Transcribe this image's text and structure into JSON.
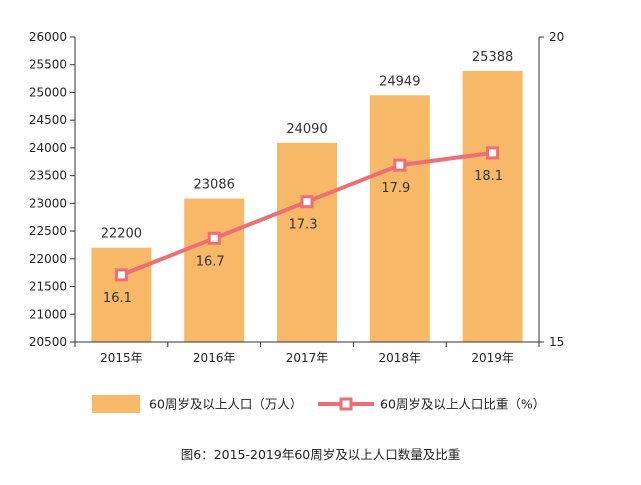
{
  "chart_data": {
    "type": "bar",
    "categories": [
      "2015年",
      "2016年",
      "2017年",
      "2018年",
      "2019年"
    ],
    "series": [
      {
        "name": "60周岁及以上人口（万人）",
        "type": "bar",
        "axis": "left",
        "values": [
          22200,
          23086,
          24090,
          24949,
          25388
        ],
        "labels": [
          "22200",
          "23086",
          "24090",
          "24949",
          "25388"
        ],
        "color": "#F7B868"
      },
      {
        "name": "60周岁及以上人口比重（%）",
        "type": "line",
        "axis": "right",
        "values": [
          16.1,
          16.7,
          17.3,
          17.9,
          18.1
        ],
        "labels": [
          "16.1",
          "16.7",
          "17.3",
          "17.9",
          "18.1"
        ],
        "color": "#EE6E73"
      }
    ],
    "y_left": {
      "range": [
        20500,
        26000
      ],
      "ticks": [
        "20500",
        "21000",
        "21500",
        "22000",
        "22500",
        "23000",
        "23500",
        "24000",
        "24500",
        "25000",
        "25500",
        "26000"
      ]
    },
    "y_right": {
      "range": [
        15,
        20
      ],
      "ticks": [
        "15",
        "20"
      ]
    },
    "grid": false,
    "legend_position": "bottom",
    "caption": "图6：2015-2019年60周岁及以上人口数量及比重"
  }
}
